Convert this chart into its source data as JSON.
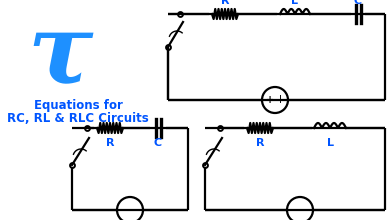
{
  "title_tau": "τ",
  "subtitle_line1": "Equations for",
  "subtitle_line2": "RC, RL & RLC Circuits",
  "label_color": "#0055FF",
  "bg_color": "#FFFFFF",
  "line_color": "#000000",
  "tau_color": "#1E90FF",
  "figsize": [
    3.9,
    2.2
  ],
  "dpi": 100
}
